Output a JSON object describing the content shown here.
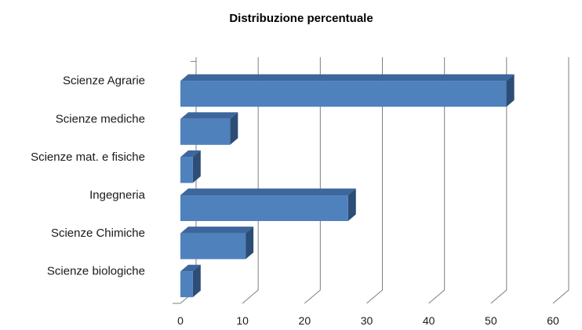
{
  "chart_data": {
    "type": "bar",
    "orientation": "horizontal",
    "three_d": true,
    "title": "Distribuzione percentuale",
    "xlabel": "",
    "ylabel": "",
    "categories": [
      "Scienze biologiche",
      "Scienze Chimiche",
      "Ingegneria",
      "Scienze mat. e fisiche",
      "Scienze mediche",
      "Scienze Agrarie"
    ],
    "values": [
      2,
      10.5,
      27,
      2,
      8,
      52.5
    ],
    "xlim": [
      0,
      60
    ],
    "xticks": [
      0,
      10,
      20,
      30,
      40,
      50,
      60
    ],
    "tick_labels": [
      "0",
      "10",
      "20",
      "30",
      "40",
      "50",
      "60"
    ],
    "grid": true,
    "legend": "none",
    "colors": {
      "bar_front": "#4f81bd",
      "bar_top": "#3d679c",
      "bar_side": "#2c4d75",
      "grid": "#7f7f7f"
    }
  }
}
